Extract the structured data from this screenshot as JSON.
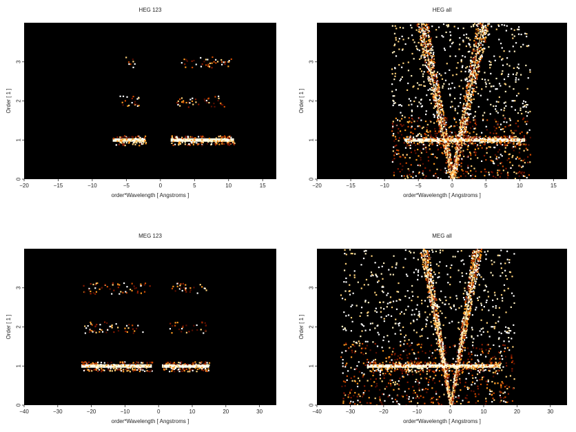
{
  "chart_data": [
    {
      "type": "heatmap",
      "title": "HEG 123",
      "xlabel": "order*Wavelength [ Angstroms ]",
      "ylabel": "Order [ 1 ]",
      "xlim": [
        -20,
        17
      ],
      "ylim": [
        0,
        4
      ],
      "xticks": [
        -20,
        -15,
        -10,
        -5,
        0,
        5,
        10,
        15
      ],
      "yticks": [
        0,
        1,
        2,
        3
      ],
      "background": "#000000",
      "colormap": [
        "#3a0000",
        "#8b1a00",
        "#d04a00",
        "#ff9a20",
        "#ffe080",
        "#ffffff"
      ],
      "features": [
        {
          "kind": "band",
          "order": 1,
          "x_range": [
            -7,
            -2.2
          ],
          "intensity": "high"
        },
        {
          "kind": "band",
          "order": 1,
          "x_range": [
            1.5,
            10.8
          ],
          "intensity": "high"
        },
        {
          "kind": "band",
          "order": 2,
          "x_range": [
            -6,
            -2.3
          ],
          "intensity": "low"
        },
        {
          "kind": "band",
          "order": 2,
          "x_range": [
            2.2,
            9.5
          ],
          "intensity": "low"
        },
        {
          "kind": "band",
          "order": 3,
          "x_range": [
            -5.3,
            -3.8
          ],
          "intensity": "low"
        },
        {
          "kind": "band",
          "order": 3,
          "x_range": [
            3,
            10.5
          ],
          "intensity": "low"
        }
      ]
    },
    {
      "type": "heatmap",
      "title": "HEG all",
      "xlabel": "order*Wavelength [ Angstroms ]",
      "ylabel": "Order [ 1 ]",
      "xlim": [
        -20,
        17
      ],
      "ylim": [
        0,
        4
      ],
      "xticks": [
        -20,
        -15,
        -10,
        -5,
        0,
        5,
        10,
        15
      ],
      "yticks": [
        0,
        1,
        2,
        3
      ],
      "background": "#000000",
      "features": [
        {
          "kind": "wedge",
          "side": "left",
          "x_at_order4": -4.5
        },
        {
          "kind": "wedge",
          "side": "right",
          "x_at_order4": 4.5
        },
        {
          "kind": "band",
          "order": 1,
          "x_range": [
            -7,
            10.8
          ],
          "intensity": "high"
        },
        {
          "kind": "scatter-field",
          "x_range": [
            -9,
            11.5
          ],
          "y_range": [
            0,
            4
          ],
          "intensity": "low"
        }
      ]
    },
    {
      "type": "heatmap",
      "title": "MEG 123",
      "xlabel": "order*Wavelength [ Angstroms ]",
      "ylabel": "Order [ 1 ]",
      "xlim": [
        -40,
        35
      ],
      "ylim": [
        0,
        4
      ],
      "xticks": [
        -40,
        -30,
        -20,
        -10,
        0,
        10,
        20,
        30
      ],
      "yticks": [
        0,
        1,
        2,
        3
      ],
      "background": "#000000",
      "features": [
        {
          "kind": "band",
          "order": 1,
          "x_range": [
            -23,
            -2
          ],
          "intensity": "high"
        },
        {
          "kind": "band",
          "order": 1,
          "x_range": [
            1,
            15
          ],
          "intensity": "high"
        },
        {
          "kind": "band",
          "order": 2,
          "x_range": [
            -23,
            -4
          ],
          "intensity": "low"
        },
        {
          "kind": "band",
          "order": 2,
          "x_range": [
            3,
            14
          ],
          "intensity": "low"
        },
        {
          "kind": "band",
          "order": 3,
          "x_range": [
            -23,
            -2
          ],
          "intensity": "low"
        },
        {
          "kind": "band",
          "order": 3,
          "x_range": [
            3,
            14
          ],
          "intensity": "low"
        }
      ]
    },
    {
      "type": "heatmap",
      "title": "MEG all",
      "xlabel": "order*Wavelength [ Angstroms ]",
      "ylabel": "Order [ 1 ]",
      "xlim": [
        -40,
        35
      ],
      "ylim": [
        0,
        4
      ],
      "xticks": [
        -40,
        -30,
        -20,
        -10,
        0,
        10,
        20,
        30
      ],
      "yticks": [
        0,
        1,
        2,
        3
      ],
      "background": "#000000",
      "features": [
        {
          "kind": "wedge",
          "side": "left",
          "x_at_order4": -8
        },
        {
          "kind": "wedge",
          "side": "right",
          "x_at_order4": 8
        },
        {
          "kind": "band",
          "order": 1,
          "x_range": [
            -25,
            15
          ],
          "intensity": "high"
        },
        {
          "kind": "scatter-field",
          "x_range": [
            -33,
            19
          ],
          "y_range": [
            0,
            4
          ],
          "intensity": "low"
        }
      ]
    }
  ]
}
